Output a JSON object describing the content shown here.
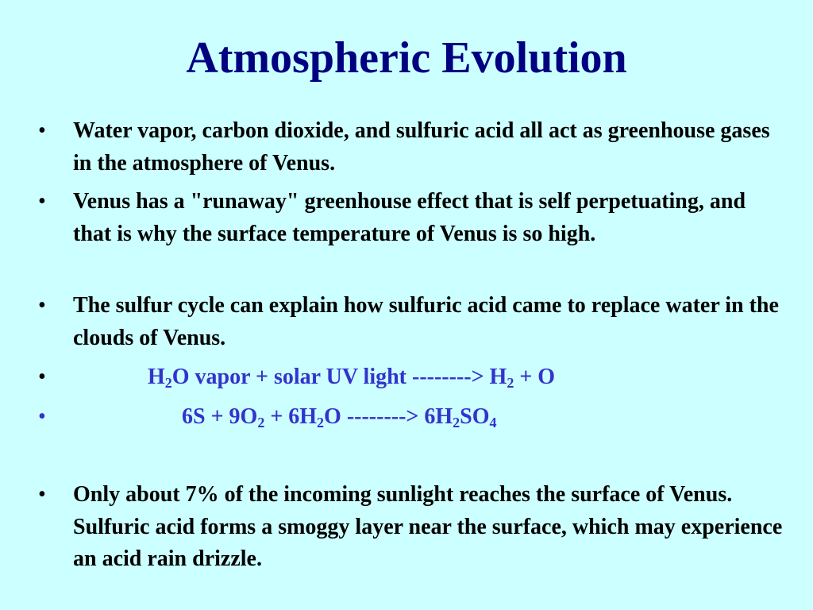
{
  "title": "Atmospheric Evolution",
  "colors": {
    "background": "#ccffff",
    "title": "#000080",
    "equation": "#3333cc"
  },
  "bullets": [
    "Water vapor, carbon dioxide, and sulfuric acid all act as greenhouse gases in the atmosphere of Venus.",
    "Venus has a \"runaway\" greenhouse effect that is self perpetuating, and that is why the surface temperature of Venus is so high.",
    "The sulfur cycle can explain how sulfuric acid came to replace water in the clouds of Venus.",
    "Only about 7% of the incoming sunlight reaches the surface of Venus.  Sulfuric acid forms a smoggy layer near the surface, which may experience an acid rain drizzle."
  ],
  "bullet_symbol": "•",
  "equation1": [
    "H",
    "2",
    "O vapor + solar UV light --------> H",
    "2",
    " + O"
  ],
  "equation2": [
    "6S + 9O",
    "2",
    " + 6H",
    "2",
    "O --------> 6H",
    "2",
    "SO",
    "4"
  ]
}
